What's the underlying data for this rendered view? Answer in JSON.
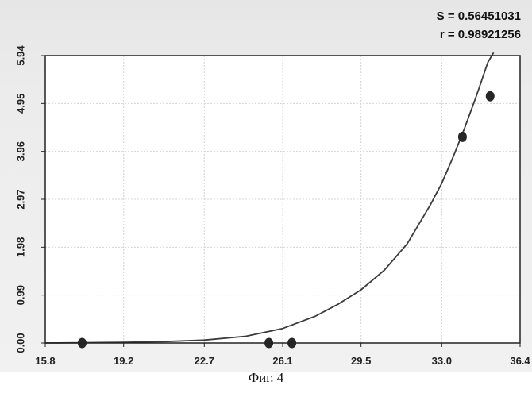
{
  "stats": {
    "s_label": "S = 0.56451031",
    "r_label": "r = 0.98921256"
  },
  "caption": "Фиг. 4",
  "chart_data": {
    "type": "scatter",
    "title": "",
    "xlabel": "",
    "ylabel": "",
    "xlim": [
      15.8,
      36.4
    ],
    "ylim": [
      0.0,
      5.94
    ],
    "xticks": [
      "15.8",
      "19.2",
      "22.7",
      "26.1",
      "29.5",
      "33.0",
      "36.4"
    ],
    "yticks": [
      "0.00",
      "0.99",
      "1.98",
      "2.97",
      "3.96",
      "4.95",
      "5.94"
    ],
    "grid": true,
    "points": [
      {
        "x": 17.4,
        "y": 0.0
      },
      {
        "x": 25.5,
        "y": 0.0
      },
      {
        "x": 26.5,
        "y": 0.0
      },
      {
        "x": 33.9,
        "y": 4.26
      },
      {
        "x": 35.1,
        "y": 5.1
      }
    ],
    "fit_curve": [
      {
        "x": 15.8,
        "y": 0.0
      },
      {
        "x": 17.4,
        "y": 0.005
      },
      {
        "x": 19.2,
        "y": 0.014
      },
      {
        "x": 21.0,
        "y": 0.03
      },
      {
        "x": 22.7,
        "y": 0.06
      },
      {
        "x": 24.5,
        "y": 0.14
      },
      {
        "x": 26.1,
        "y": 0.3
      },
      {
        "x": 27.5,
        "y": 0.55
      },
      {
        "x": 28.5,
        "y": 0.8
      },
      {
        "x": 29.5,
        "y": 1.1
      },
      {
        "x": 30.5,
        "y": 1.5
      },
      {
        "x": 31.5,
        "y": 2.05
      },
      {
        "x": 32.5,
        "y": 2.85
      },
      {
        "x": 33.0,
        "y": 3.3
      },
      {
        "x": 33.5,
        "y": 3.85
      },
      {
        "x": 34.0,
        "y": 4.45
      },
      {
        "x": 34.5,
        "y": 5.1
      },
      {
        "x": 35.0,
        "y": 5.8
      },
      {
        "x": 35.25,
        "y": 6.0
      }
    ]
  }
}
